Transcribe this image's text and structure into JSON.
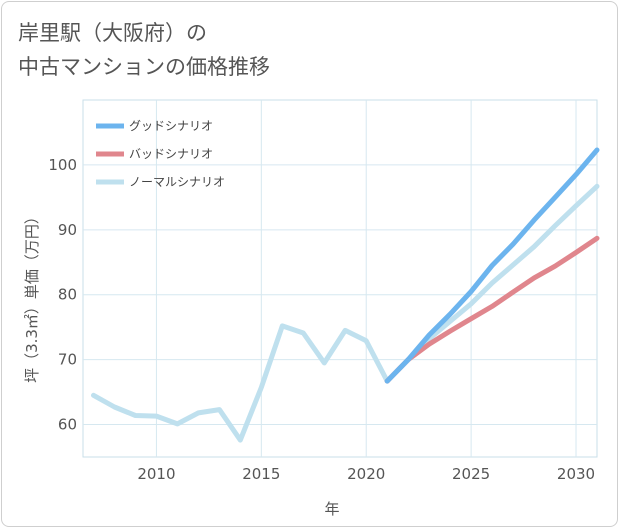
{
  "title": {
    "line1": "岸里駅（大阪府）の",
    "line2": "中古マンションの価格推移"
  },
  "chart_data": {
    "type": "line",
    "title": "岸里駅（大阪府）の中古マンションの価格推移",
    "xlabel": "年",
    "ylabel": "坪（3.3㎡）単価（万円）",
    "xlim": [
      2006.5,
      2031
    ],
    "ylim": [
      55,
      110
    ],
    "xticks": [
      2010,
      2015,
      2020,
      2025,
      2030
    ],
    "yticks": [
      60,
      70,
      80,
      90,
      100
    ],
    "grid": true,
    "legend_position": "top-left",
    "series": [
      {
        "name": "グッドシナリオ",
        "color": "#6cb4ee",
        "x": [
          2021,
          2022,
          2023,
          2024,
          2025,
          2026,
          2027,
          2028,
          2029,
          2030,
          2031
        ],
        "y": [
          66.7,
          70.0,
          73.8,
          77.0,
          80.5,
          84.5,
          87.8,
          91.5,
          95.0,
          98.5,
          102.3
        ]
      },
      {
        "name": "バッドシナリオ",
        "color": "#e0868d",
        "x": [
          2021,
          2022,
          2023,
          2024,
          2025,
          2026,
          2027,
          2028,
          2029,
          2030,
          2031
        ],
        "y": [
          66.7,
          70.0,
          72.4,
          74.4,
          76.3,
          78.2,
          80.4,
          82.6,
          84.4,
          86.5,
          88.7
        ]
      },
      {
        "name": "ノーマルシナリオ",
        "color": "#bfe0ee",
        "x": [
          2007,
          2008,
          2009,
          2010,
          2011,
          2012,
          2013,
          2014,
          2015,
          2016,
          2017,
          2018,
          2019,
          2020,
          2021,
          2022,
          2023,
          2024,
          2025,
          2026,
          2027,
          2028,
          2029,
          2030,
          2031
        ],
        "y": [
          64.5,
          62.7,
          61.4,
          61.3,
          60.1,
          61.8,
          62.3,
          57.6,
          65.7,
          75.2,
          74.1,
          69.5,
          74.5,
          72.9,
          66.7,
          70.0,
          73.2,
          75.9,
          78.6,
          81.8,
          84.6,
          87.4,
          90.6,
          93.7,
          96.7
        ]
      }
    ]
  }
}
